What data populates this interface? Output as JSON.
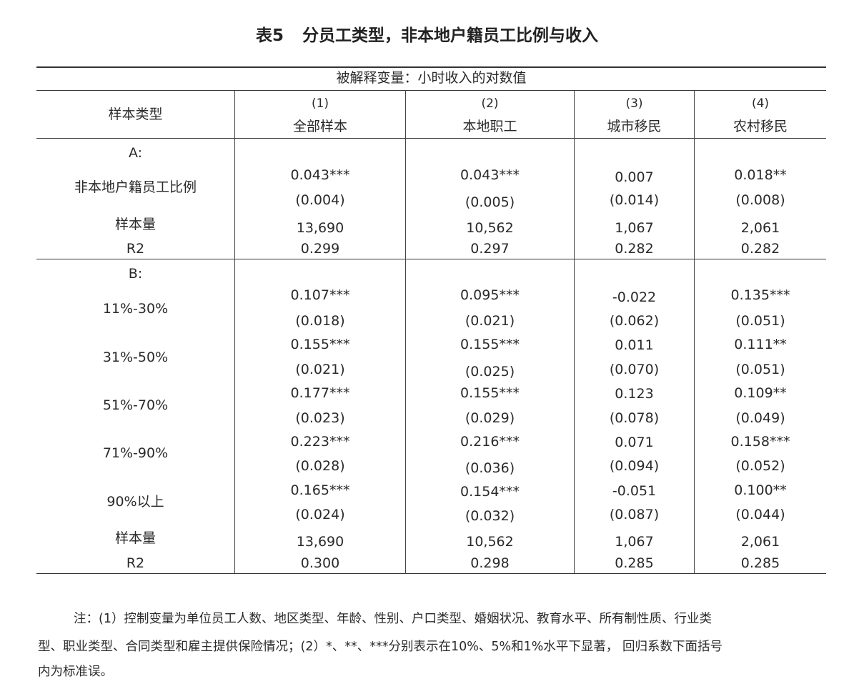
{
  "table": {
    "title_number": "表5",
    "title_text": "分员工类型，非本地户籍员工比例与收入",
    "dependent_variable": "被解释变量：小时收入的对数值",
    "row_header_label": "样本类型",
    "columns": [
      {
        "number": "(1)",
        "label": "全部样本"
      },
      {
        "number": "(2)",
        "label": "本地职工"
      },
      {
        "number": "(3)",
        "label": "城市移民"
      },
      {
        "number": "(4)",
        "label": "农村移民"
      }
    ],
    "panel_a": {
      "label": "A:",
      "rows": [
        {
          "label": "非本地户籍员工比例",
          "coef": [
            "0.043***",
            "0.043***",
            "0.007",
            "0.018**"
          ],
          "se": [
            "(0.004)",
            "(0.005)",
            "(0.014)",
            "(0.008)"
          ]
        }
      ],
      "n_label": "样本量",
      "n": [
        "13,690",
        "10,562",
        "1,067",
        "2,061"
      ],
      "r2_label": "R2",
      "r2": [
        "0.299",
        "0.297",
        "0.282",
        "0.282"
      ]
    },
    "panel_b": {
      "label": "B:",
      "rows": [
        {
          "label": "11%-30%",
          "coef": [
            "0.107***",
            "0.095***",
            "-0.022",
            "0.135***"
          ],
          "se": [
            "(0.018)",
            "(0.021)",
            "(0.062)",
            "(0.051)"
          ]
        },
        {
          "label": "31%-50%",
          "coef": [
            "0.155***",
            "0.155***",
            "0.011",
            "0.111**"
          ],
          "se": [
            "(0.021)",
            "(0.025)",
            "(0.070)",
            "(0.051)"
          ]
        },
        {
          "label": "51%-70%",
          "coef": [
            "0.177***",
            "0.155***",
            "0.123",
            "0.109**"
          ],
          "se": [
            "(0.023)",
            "(0.029)",
            "(0.078)",
            "(0.049)"
          ]
        },
        {
          "label": "71%-90%",
          "coef": [
            "0.223***",
            "0.216***",
            "0.071",
            "0.158***"
          ],
          "se": [
            "(0.028)",
            "(0.036)",
            "(0.094)",
            "(0.052)"
          ]
        },
        {
          "label": "90%以上",
          "coef": [
            "0.165***",
            "0.154***",
            "-0.051",
            "0.100**"
          ],
          "se": [
            "(0.024)",
            "(0.032)",
            "(0.087)",
            "(0.044)"
          ]
        }
      ],
      "n_label": "样本量",
      "n": [
        "13,690",
        "10,562",
        "1,067",
        "2,061"
      ],
      "r2_label": "R2",
      "r2": [
        "0.300",
        "0.298",
        "0.285",
        "0.285"
      ]
    }
  },
  "note": {
    "line1": "注：(1）控制变量为单位员工人数、地区类型、年龄、性别、户口类型、婚姻状况、教育水平、所有制性质、行业类",
    "line2": "型、职业类型、合同类型和雇主提供保险情况；(2）*、**、***分别表示在10%、5%和1%水平下显著， 回归系数下面括号",
    "line3": "内为标准误。"
  }
}
